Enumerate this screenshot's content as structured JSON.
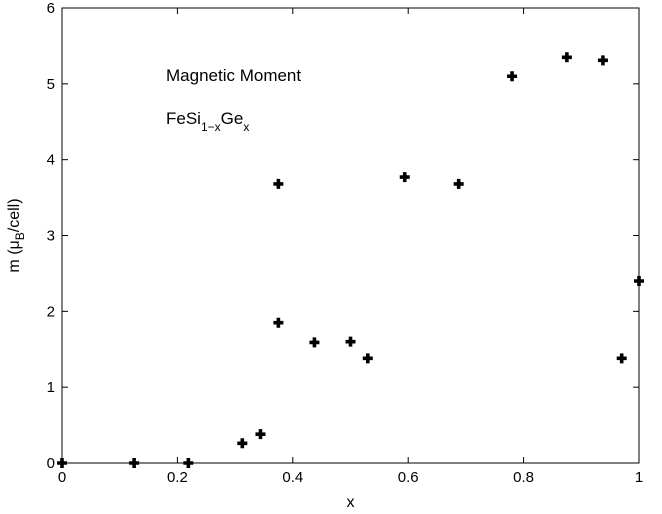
{
  "chart_data": {
    "type": "scatter",
    "xlabel": "x",
    "ylabel": {
      "main": "m (μ",
      "sub": "B",
      "rest": "/cell)"
    },
    "xlim": [
      0,
      1
    ],
    "ylim": [
      0,
      6
    ],
    "xticks": [
      "0",
      "0.2",
      "0.4",
      "0.6",
      "0.8",
      "1"
    ],
    "yticks": [
      "0",
      "1",
      "2",
      "3",
      "4",
      "5",
      "6"
    ],
    "grid": false,
    "annotations": {
      "line1": "Magnetic Moment",
      "line2_base": "FeSi",
      "line2_sub1": "1−x",
      "line2_mid": "Ge",
      "line2_sub2": "x"
    },
    "marker": "filled-plus",
    "color": "#000000",
    "points": [
      {
        "x": 0.0,
        "y": 0.0
      },
      {
        "x": 0.125,
        "y": 0.0
      },
      {
        "x": 0.219,
        "y": 0.0
      },
      {
        "x": 0.3125,
        "y": 0.26
      },
      {
        "x": 0.344,
        "y": 0.38
      },
      {
        "x": 0.375,
        "y": 1.85
      },
      {
        "x": 0.375,
        "y": 3.68
      },
      {
        "x": 0.4375,
        "y": 1.59
      },
      {
        "x": 0.5,
        "y": 1.6
      },
      {
        "x": 0.53,
        "y": 1.38
      },
      {
        "x": 0.594,
        "y": 3.77
      },
      {
        "x": 0.6875,
        "y": 3.68
      },
      {
        "x": 0.78,
        "y": 5.1
      },
      {
        "x": 0.875,
        "y": 5.35
      },
      {
        "x": 0.9375,
        "y": 5.31
      },
      {
        "x": 0.97,
        "y": 1.38
      },
      {
        "x": 1.0,
        "y": 2.4
      }
    ]
  }
}
